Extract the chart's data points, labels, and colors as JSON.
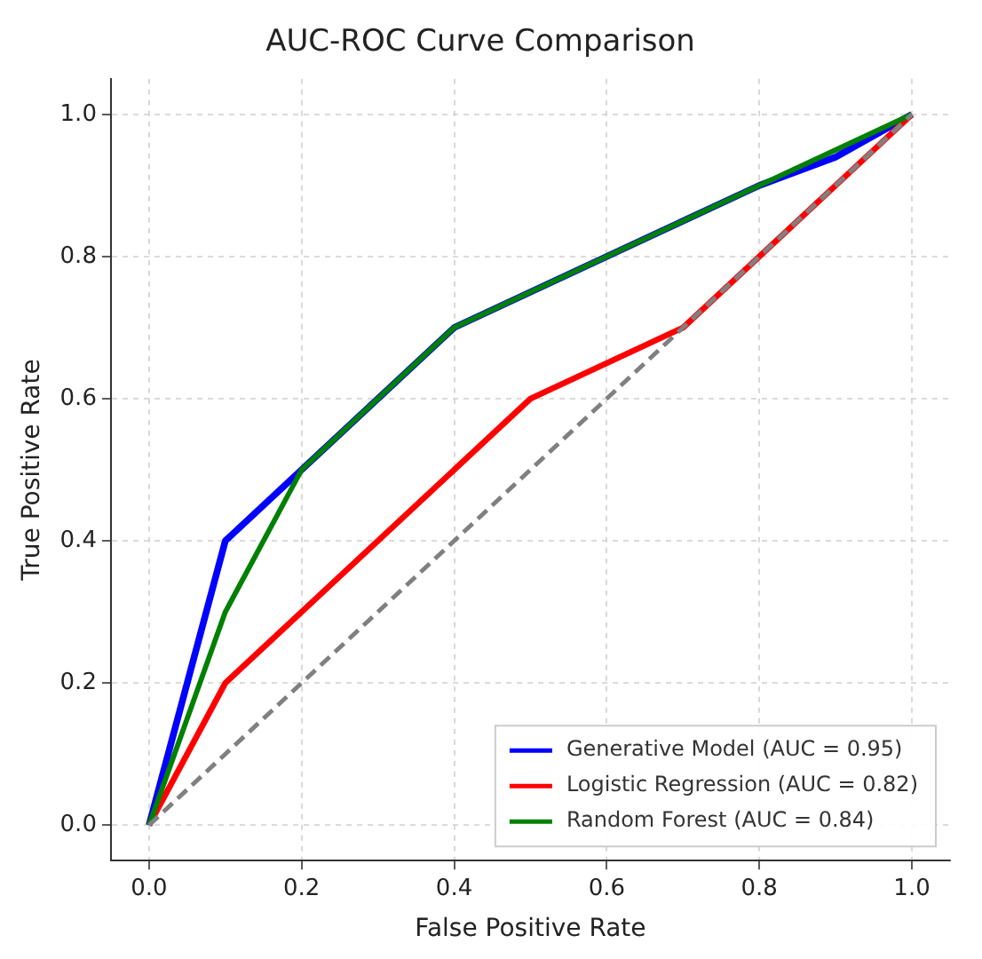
{
  "chart_data": {
    "type": "line",
    "title": "AUC-ROC Curve Comparison",
    "xlabel": "False Positive Rate",
    "ylabel": "True Positive Rate",
    "xlim": [
      -0.05,
      1.05
    ],
    "ylim": [
      -0.05,
      1.05
    ],
    "xticks": [
      {
        "value": 0,
        "label": "0.0"
      },
      {
        "value": 0.2,
        "label": "0.2"
      },
      {
        "value": 0.4,
        "label": "0.4"
      },
      {
        "value": 0.6,
        "label": "0.6"
      },
      {
        "value": 0.8,
        "label": "0.8"
      },
      {
        "value": 1,
        "label": "1.0"
      }
    ],
    "yticks": [
      {
        "value": 0,
        "label": "0.0"
      },
      {
        "value": 0.2,
        "label": "0.2"
      },
      {
        "value": 0.4,
        "label": "0.4"
      },
      {
        "value": 0.6,
        "label": "0.6"
      },
      {
        "value": 0.8,
        "label": "0.8"
      },
      {
        "value": 1,
        "label": "1.0"
      }
    ],
    "series": [
      {
        "name": "Generative Model (AUC = 0.95)",
        "color": "#0000ff",
        "x": [
          0,
          0.1,
          0.2,
          0.4,
          0.8,
          0.9,
          1
        ],
        "values": [
          0,
          0.4,
          0.5,
          0.7,
          0.9,
          0.94,
          1
        ]
      },
      {
        "name": "Logistic Regression (AUC = 0.82)",
        "color": "#ff0000",
        "x": [
          0,
          0.1,
          0.5,
          0.7,
          1
        ],
        "values": [
          0,
          0.2,
          0.6,
          0.7,
          1
        ]
      },
      {
        "name": "Random Forest (AUC = 0.84)",
        "color": "#008000",
        "x": [
          0,
          0.1,
          0.2,
          0.4,
          0.8,
          1
        ],
        "values": [
          0,
          0.3,
          0.5,
          0.7,
          0.9,
          1
        ]
      },
      {
        "color": "#808080",
        "x": [
          0,
          1
        ],
        "values": [
          0,
          1
        ],
        "line_style": "dashed"
      }
    ],
    "grid": true,
    "legend": "bottom right",
    "marker": "none",
    "line_style": "solid"
  }
}
